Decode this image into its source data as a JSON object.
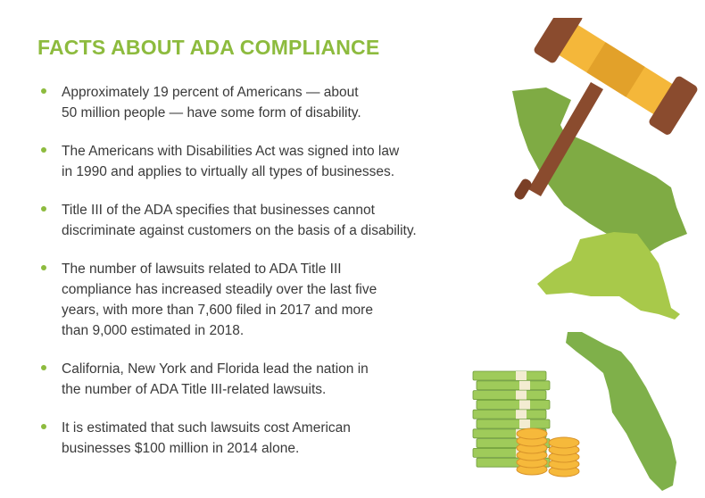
{
  "title": "FACTS ABOUT ADA COMPLIANCE",
  "facts": [
    {
      "lines": [
        "Approximately 19 percent of Americans — about",
        "50 million people — have some form of disability."
      ]
    },
    {
      "lines": [
        "The Americans with Disabilities Act was signed into law",
        "in 1990 and applies to virtually all types of businesses."
      ]
    },
    {
      "lines": [
        "Title III of the ADA specifies that businesses cannot",
        "discriminate against customers on the basis of a disability."
      ]
    },
    {
      "lines": [
        "The number of lawsuits related to ADA Title III",
        "compliance has increased steadily over the last five",
        "years, with more than 7,600 filed in 2017 and more",
        "than 9,000 estimated in 2018."
      ]
    },
    {
      "lines": [
        "California, New York and Florida lead the nation in",
        "the number of ADA Title III-related lawsuits."
      ]
    },
    {
      "lines": [
        "It is estimated that such lawsuits cost American",
        "businesses $100 million in 2014 alone."
      ]
    }
  ],
  "colors": {
    "accent_green": "#8dbb3e",
    "california_green": "#7fab44",
    "newyork_green": "#a8c94a",
    "florida_green": "#7fb04a",
    "gavel_brown": "#8a4b2e",
    "gavel_band": "#f4b73a",
    "money_green": "#9fcb5a",
    "coin_gold": "#f6b93b"
  },
  "illustration": {
    "icons": [
      "gavel-icon",
      "california-map-icon",
      "new-york-map-icon",
      "florida-map-icon",
      "money-stack-icon",
      "coin-stack-icon"
    ]
  }
}
